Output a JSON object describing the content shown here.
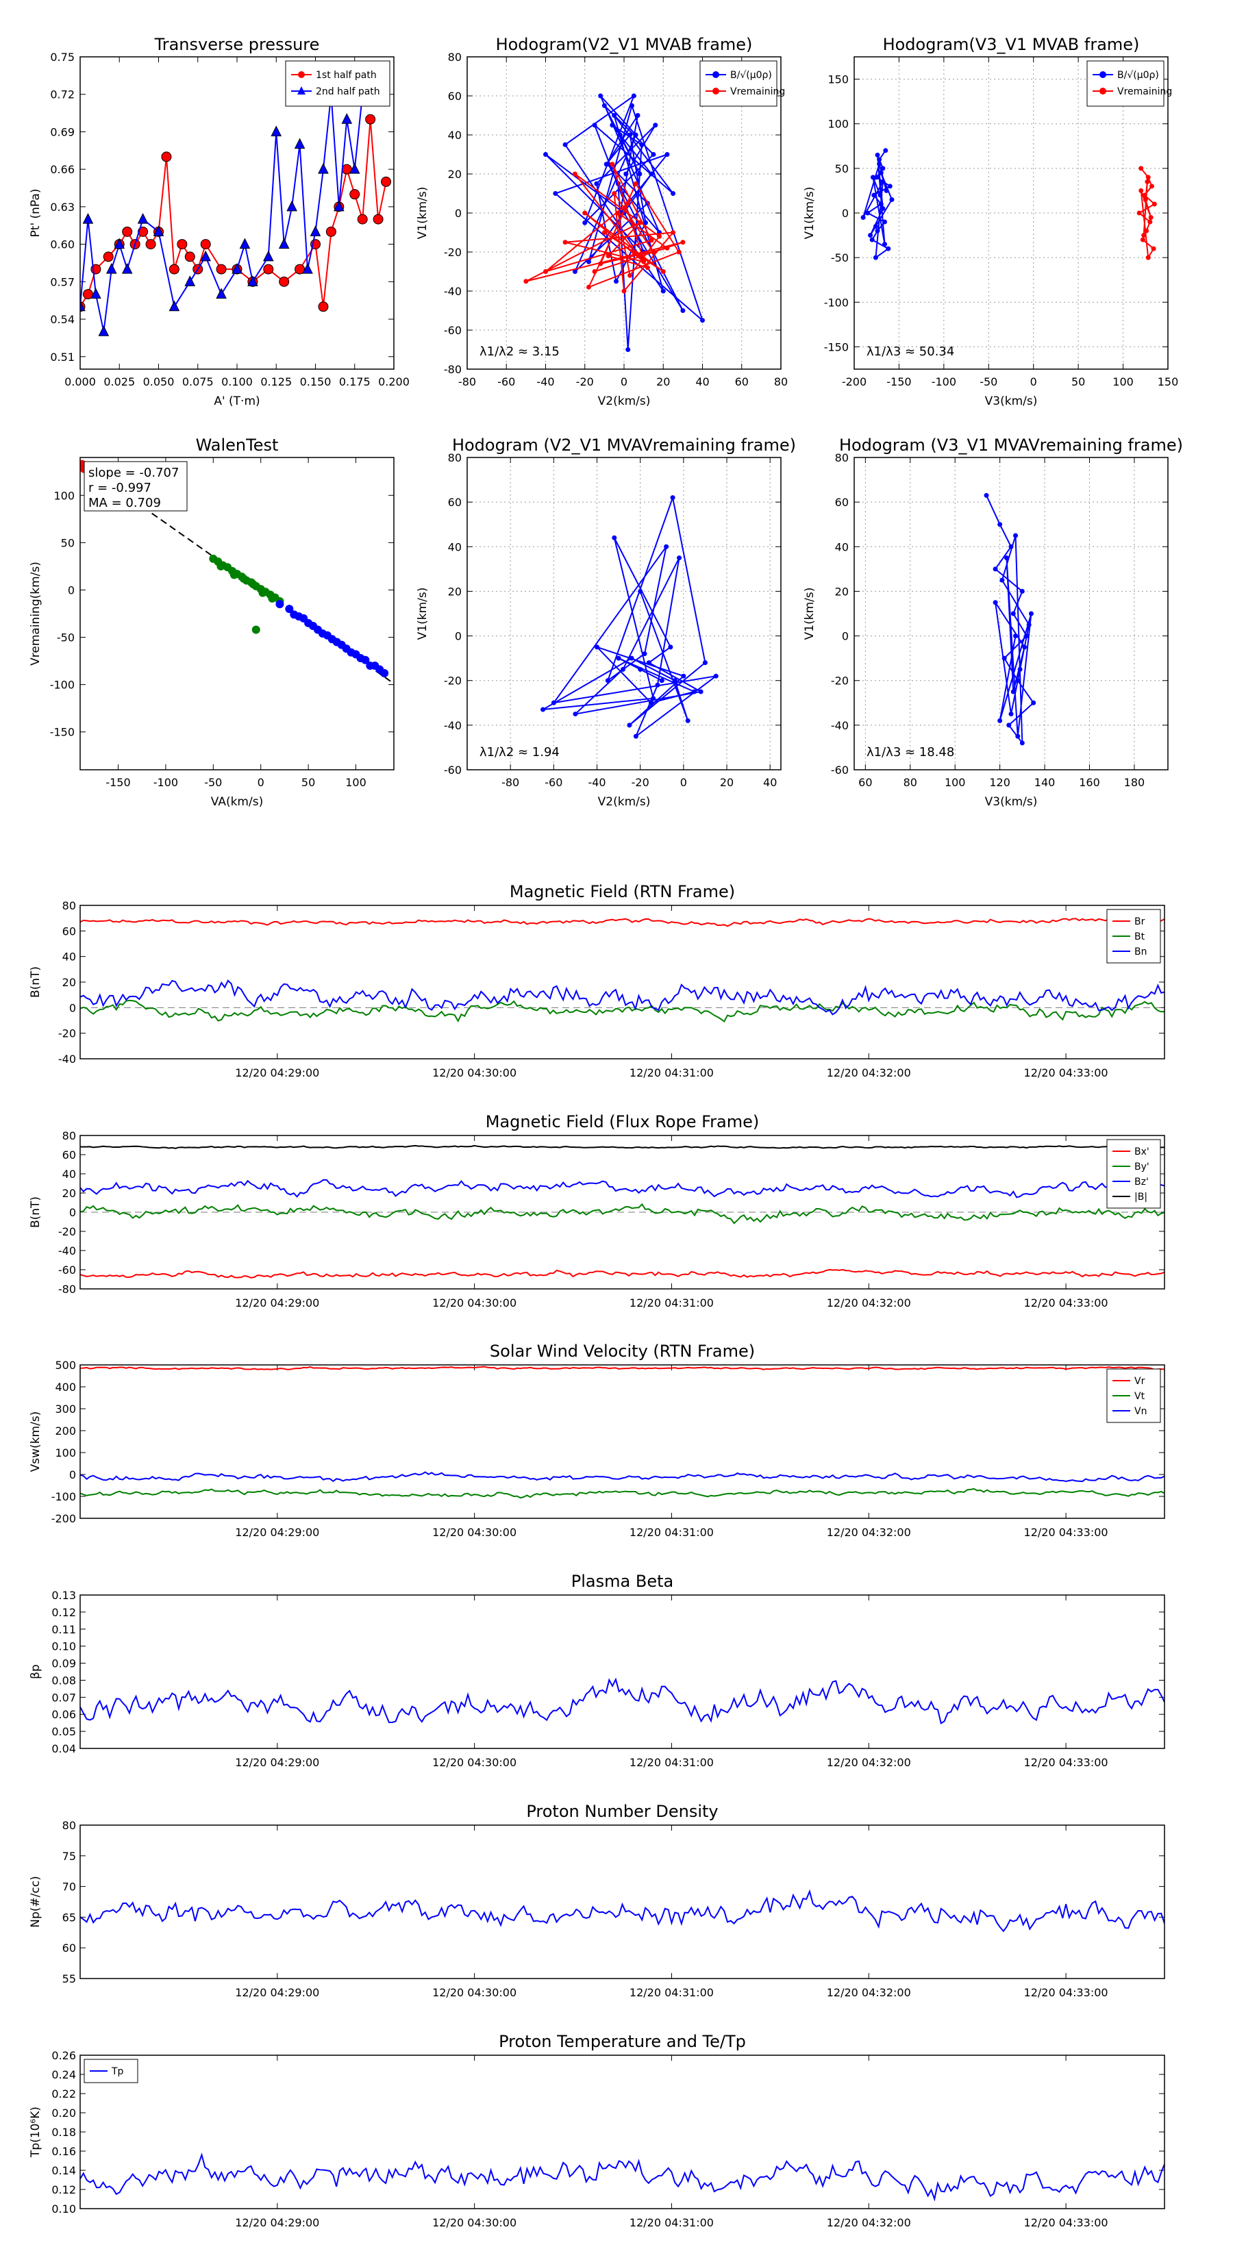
{
  "chart_data": [
    {
      "id": "tp",
      "type": "scatter",
      "title": "Transverse pressure",
      "xlabel": "A' (T·m)",
      "ylabel": "Pt' (nPa)",
      "xlim": [
        0.0,
        0.2
      ],
      "ylim": [
        0.5,
        0.75
      ],
      "xticks": [
        0.0,
        0.025,
        0.05,
        0.075,
        0.1,
        0.125,
        0.15,
        0.175,
        0.2
      ],
      "xtick_labels": [
        "0.000",
        "0.025",
        "0.050",
        "0.075",
        "0.100",
        "0.125",
        "0.150",
        "0.175",
        "0.200"
      ],
      "yticks": [
        0.51,
        0.54,
        0.57,
        0.6,
        0.63,
        0.66,
        0.69,
        0.72,
        0.75
      ],
      "ytick_labels": [
        "0.51",
        "0.54",
        "0.57",
        "0.60",
        "0.63",
        "0.66",
        "0.69",
        "0.72",
        "0.75"
      ],
      "grid": false,
      "legend": "top-right",
      "series": [
        {
          "name": "1st half path",
          "color": "#ff0000",
          "marker": "circle",
          "x": [
            0.0,
            0.005,
            0.01,
            0.018,
            0.025,
            0.03,
            0.035,
            0.04,
            0.045,
            0.05,
            0.055,
            0.06,
            0.065,
            0.07,
            0.075,
            0.08,
            0.09,
            0.1,
            0.11,
            0.12,
            0.13,
            0.14,
            0.15,
            0.155,
            0.16,
            0.165,
            0.17,
            0.175,
            0.18,
            0.185,
            0.19,
            0.195
          ],
          "y": [
            0.55,
            0.56,
            0.58,
            0.59,
            0.6,
            0.61,
            0.6,
            0.61,
            0.6,
            0.61,
            0.67,
            0.58,
            0.6,
            0.59,
            0.58,
            0.6,
            0.58,
            0.58,
            0.57,
            0.58,
            0.57,
            0.58,
            0.6,
            0.55,
            0.61,
            0.63,
            0.66,
            0.64,
            0.62,
            0.7,
            0.62,
            0.65
          ]
        },
        {
          "name": "2nd half path",
          "color": "#0000ff",
          "marker": "triangle",
          "x": [
            0.0,
            0.005,
            0.01,
            0.015,
            0.02,
            0.025,
            0.03,
            0.04,
            0.05,
            0.06,
            0.07,
            0.08,
            0.09,
            0.1,
            0.105,
            0.11,
            0.12,
            0.125,
            0.13,
            0.135,
            0.14,
            0.145,
            0.15,
            0.155,
            0.16,
            0.165,
            0.17,
            0.175,
            0.18
          ],
          "y": [
            0.55,
            0.62,
            0.56,
            0.53,
            0.58,
            0.6,
            0.58,
            0.62,
            0.61,
            0.55,
            0.57,
            0.59,
            0.56,
            0.58,
            0.6,
            0.57,
            0.59,
            0.69,
            0.6,
            0.63,
            0.68,
            0.58,
            0.61,
            0.66,
            0.72,
            0.63,
            0.7,
            0.66,
            0.72
          ]
        }
      ]
    },
    {
      "id": "h1",
      "type": "line",
      "title": "Hodogram(V2_V1 MVAB frame)",
      "xlabel": "V2(km/s)",
      "ylabel": "V1(km/s)",
      "xlim": [
        -80,
        80
      ],
      "ylim": [
        -80,
        80
      ],
      "xticks": [
        -80,
        -60,
        -40,
        -20,
        0,
        20,
        40,
        60,
        80
      ],
      "yticks": [
        -80,
        -60,
        -40,
        -20,
        0,
        20,
        40,
        60,
        80
      ],
      "grid": true,
      "legend": "top-right",
      "annotation": "λ1/λ2 ≈ 3.15",
      "series": [
        {
          "name": "B/√(μ0ρ)",
          "color": "#0000ff",
          "x": [
            -2,
            8,
            -10,
            15,
            -20,
            5,
            -30,
            20,
            -5,
            25,
            -15,
            10,
            -40,
            0,
            30,
            -8,
            12,
            -25,
            6,
            -12,
            18,
            -3,
            2,
            9,
            -6,
            14,
            -18,
            4,
            40,
            -35,
            22,
            -2,
            7,
            -9,
            3,
            11,
            -4,
            -14,
            16,
            1
          ],
          "y": [
            40,
            20,
            55,
            30,
            -5,
            60,
            35,
            -40,
            50,
            10,
            45,
            -20,
            30,
            0,
            -50,
            25,
            5,
            -30,
            40,
            60,
            -10,
            15,
            -70,
            35,
            45,
            20,
            -25,
            55,
            -55,
            10,
            30,
            0,
            50,
            25,
            40,
            -5,
            -35,
            15,
            45,
            20
          ]
        },
        {
          "name": "Vremaining",
          "color": "#ff0000",
          "x": [
            5,
            -10,
            20,
            -20,
            10,
            -30,
            25,
            0,
            -5,
            15,
            -15,
            30,
            -50,
            8,
            -8,
            12,
            -25,
            18,
            3,
            -3,
            22,
            -12,
            6,
            28,
            -18,
            2,
            -40,
            14,
            -6,
            10
          ],
          "y": [
            -20,
            -10,
            -30,
            0,
            -25,
            -15,
            -10,
            -40,
            10,
            -20,
            -30,
            -15,
            -35,
            -5,
            -22,
            -28,
            20,
            -12,
            -32,
            0,
            -18,
            -26,
            15,
            -20,
            -38,
            5,
            -30,
            -14,
            25,
            -24
          ]
        }
      ]
    },
    {
      "id": "h2",
      "type": "line",
      "title": "Hodogram(V3_V1 MVAB frame)",
      "xlabel": "V3(km/s)",
      "ylabel": "V1(km/s)",
      "xlim": [
        -200,
        150
      ],
      "ylim": [
        -175,
        175
      ],
      "xticks": [
        -200,
        -150,
        -100,
        -50,
        0,
        50,
        100,
        150
      ],
      "yticks": [
        -150,
        -100,
        -50,
        0,
        50,
        100,
        150
      ],
      "grid": true,
      "legend": "top-right",
      "annotation": "λ1/λ3 ≈ 50.34",
      "series": [
        {
          "name": "B/√(μ0ρ)",
          "color": "#0000ff",
          "x": [
            -165,
            -172,
            -168,
            -175,
            -160,
            -178,
            -170,
            -185,
            -166,
            -174,
            -180,
            -162,
            -176,
            -168,
            -190,
            -172,
            -164,
            -170,
            -158,
            -176,
            -182,
            -168,
            -174,
            -166,
            -179,
            -171
          ],
          "y": [
            70,
            60,
            50,
            40,
            30,
            20,
            10,
            0,
            -10,
            -20,
            -30,
            -40,
            -50,
            35,
            -5,
            55,
            25,
            45,
            15,
            -15,
            -25,
            5,
            65,
            -35,
            40,
            20
          ]
        },
        {
          "name": "Vremaining",
          "color": "#ff0000",
          "x": [
            120,
            128,
            132,
            124,
            135,
            118,
            130,
            126,
            122,
            134,
            128,
            120,
            131,
            125,
            127,
            123
          ],
          "y": [
            50,
            40,
            30,
            20,
            10,
            0,
            -10,
            -20,
            -30,
            -40,
            -50,
            25,
            -5,
            15,
            35,
            -25
          ]
        }
      ]
    },
    {
      "id": "walen",
      "type": "scatter",
      "title": "WalenTest",
      "xlabel": "VA(km/s)",
      "ylabel": "Vremaining(km/s)",
      "xlim": [
        -190,
        140
      ],
      "ylim": [
        -190,
        140
      ],
      "xticks": [
        -150,
        -100,
        -50,
        0,
        50,
        100
      ],
      "yticks": [
        -150,
        -100,
        -50,
        0,
        50,
        100
      ],
      "grid": false,
      "fit": {
        "slope": -0.707,
        "intercept": 0
      },
      "annotations": [
        "slope = -0.707",
        "r = -0.997",
        "MA = 0.709"
      ],
      "series": [
        {
          "name": "red",
          "color": "#ff0000",
          "x": [
            -188,
            -186
          ],
          "y": [
            133,
            128
          ]
        },
        {
          "name": "green",
          "color": "#008000",
          "x": [
            -50,
            -45,
            -40,
            -35,
            -30,
            -25,
            -20,
            -15,
            -10,
            -5,
            0,
            5,
            10,
            15,
            20,
            -42,
            -28,
            -18,
            -8,
            2,
            12,
            -5
          ],
          "y": [
            33,
            30,
            26,
            24,
            20,
            17,
            14,
            10,
            8,
            4,
            1,
            -2,
            -5,
            -8,
            -12,
            25,
            16,
            12,
            6,
            -3,
            -9,
            -42
          ]
        },
        {
          "name": "blue",
          "color": "#0000ff",
          "x": [
            20,
            30,
            40,
            50,
            60,
            70,
            80,
            90,
            100,
            110,
            120,
            130,
            35,
            55,
            75,
            95,
            115,
            45,
            65,
            85,
            105,
            125
          ],
          "y": [
            -15,
            -20,
            -28,
            -35,
            -42,
            -48,
            -55,
            -62,
            -68,
            -74,
            -80,
            -88,
            -26,
            -38,
            -52,
            -66,
            -80,
            -30,
            -46,
            -58,
            -72,
            -84
          ]
        }
      ]
    },
    {
      "id": "h3",
      "type": "line",
      "title": "Hodogram (V2_V1 MVAVremaining frame)",
      "xlabel": "V2(km/s)",
      "ylabel": "V1(km/s)",
      "xlim": [
        -100,
        45
      ],
      "ylim": [
        -60,
        80
      ],
      "xticks": [
        -80,
        -60,
        -40,
        -20,
        0,
        20,
        40
      ],
      "yticks": [
        -60,
        -40,
        -20,
        0,
        20,
        40,
        60,
        80
      ],
      "grid": true,
      "annotation": "λ1/λ2 ≈ 1.94",
      "series": [
        {
          "name": "Vremaining",
          "color": "#0000ff",
          "x": [
            -20,
            -10,
            -30,
            5,
            -15,
            -40,
            0,
            -25,
            10,
            -5,
            -35,
            -18,
            -8,
            -60,
            15,
            -22,
            -12,
            -2,
            -28,
            -50,
            8,
            -16,
            -6,
            -32,
            -14,
            -65,
            -24,
            -4,
            2,
            -20
          ],
          "y": [
            -15,
            -20,
            -10,
            -25,
            -30,
            -5,
            -18,
            -40,
            -12,
            62,
            -20,
            -8,
            40,
            -30,
            -18,
            -45,
            -22,
            35,
            -15,
            -35,
            -25,
            -12,
            -5,
            44,
            -28,
            -33,
            -10,
            -20,
            -38,
            20
          ]
        }
      ]
    },
    {
      "id": "h4",
      "type": "line",
      "title": "Hodogram (V3_V1 MVAVremaining frame)",
      "xlabel": "V3(km/s)",
      "ylabel": "V1(km/s)",
      "xlim": [
        55,
        195
      ],
      "ylim": [
        -60,
        80
      ],
      "xticks": [
        60,
        80,
        100,
        120,
        140,
        160,
        180
      ],
      "yticks": [
        -60,
        -40,
        -20,
        0,
        20,
        40,
        60,
        80
      ],
      "grid": true,
      "annotation": "λ1/λ3 ≈ 18.48",
      "series": [
        {
          "name": "Vremaining",
          "color": "#0000ff",
          "x": [
            114,
            120,
            125,
            118,
            130,
            126,
            132,
            122,
            128,
            135,
            124,
            130,
            127,
            121,
            133,
            129,
            125,
            118,
            131,
            126,
            123,
            128,
            134,
            120,
            127
          ],
          "y": [
            63,
            50,
            40,
            30,
            20,
            10,
            0,
            -10,
            -20,
            -30,
            -40,
            -48,
            45,
            25,
            5,
            -15,
            -35,
            15,
            -5,
            -25,
            35,
            -45,
            10,
            -38,
            0
          ]
        }
      ]
    }
  ],
  "time_axis": {
    "tick_labels": [
      "12/20 04:29:00",
      "12/20 04:30:00",
      "12/20 04:31:00",
      "12/20 04:32:00",
      "12/20 04:33:00"
    ],
    "tick_positions_min": [
      1,
      2,
      3,
      4,
      5
    ],
    "range_min": [
      0,
      5.5
    ]
  },
  "timeseries": [
    {
      "id": "brtn",
      "title": "Magnetic Field (RTN Frame)",
      "ylabel": "B(nT)",
      "ylim": [
        -40,
        80
      ],
      "yticks": [
        -40,
        -20,
        0,
        20,
        40,
        60,
        80
      ],
      "zero_line": true,
      "legend": "top-right",
      "series": [
        {
          "name": "Br",
          "color": "#ff0000",
          "base": 67,
          "noise": 2
        },
        {
          "name": "Bt",
          "color": "#008000",
          "base": -2,
          "noise": 5
        },
        {
          "name": "Bn",
          "color": "#0000ff",
          "base": 8,
          "noise": 9
        }
      ]
    },
    {
      "id": "bfr",
      "title": "Magnetic Field (Flux Rope Frame)",
      "ylabel": "B(nT)",
      "ylim": [
        -80,
        80
      ],
      "yticks": [
        -80,
        -60,
        -40,
        -20,
        0,
        20,
        40,
        60,
        80
      ],
      "zero_line": true,
      "legend": "top-right",
      "series": [
        {
          "name": "Bx'",
          "color": "#ff0000",
          "base": -65,
          "noise": 3
        },
        {
          "name": "By'",
          "color": "#008000",
          "base": 0,
          "noise": 6
        },
        {
          "name": "Bz'",
          "color": "#0000ff",
          "base": 25,
          "noise": 6
        },
        {
          "name": "|B|",
          "color": "#000000",
          "base": 68,
          "noise": 1
        }
      ]
    },
    {
      "id": "vsw",
      "title": "Solar Wind Velocity (RTN Frame)",
      "ylabel": "Vsw(km/s)",
      "ylim": [
        -200,
        500
      ],
      "yticks": [
        -200,
        -100,
        0,
        100,
        200,
        300,
        400,
        500
      ],
      "zero_line": false,
      "legend": "top-right",
      "series": [
        {
          "name": "Vr",
          "color": "#ff0000",
          "base": 485,
          "noise": 5
        },
        {
          "name": "Vt",
          "color": "#008000",
          "base": -85,
          "noise": 12
        },
        {
          "name": "Vn",
          "color": "#0000ff",
          "base": -10,
          "noise": 14
        }
      ]
    },
    {
      "id": "beta",
      "title": "Plasma Beta",
      "ylabel": "βp",
      "ylim": [
        0.04,
        0.13
      ],
      "yticks": [
        0.04,
        0.05,
        0.06,
        0.07,
        0.08,
        0.09,
        0.1,
        0.11,
        0.12,
        0.13
      ],
      "ytick_labels": [
        "0.04",
        "0.05",
        "0.06",
        "0.07",
        "0.08",
        "0.09",
        "0.10",
        "0.11",
        "0.12",
        "0.13"
      ],
      "zero_line": false,
      "legend": "none",
      "series": [
        {
          "name": "beta",
          "color": "#0000ff",
          "base": 0.066,
          "noise": 0.009
        }
      ]
    },
    {
      "id": "np",
      "title": "Proton Number Density",
      "ylabel": "Np(#/cc)",
      "ylim": [
        55,
        80
      ],
      "yticks": [
        55,
        60,
        65,
        70,
        75,
        80
      ],
      "zero_line": false,
      "legend": "none",
      "series": [
        {
          "name": "Np",
          "color": "#0000ff",
          "base": 65.5,
          "noise": 2.2
        }
      ]
    },
    {
      "id": "tp2",
      "title": "Proton Temperature and Te/Tp",
      "ylabel": "Tp(10⁶K)",
      "ylim": [
        0.1,
        0.26
      ],
      "yticks": [
        0.1,
        0.12,
        0.14,
        0.16,
        0.18,
        0.2,
        0.22,
        0.24,
        0.26
      ],
      "ytick_labels": [
        "0.10",
        "0.12",
        "0.14",
        "0.16",
        "0.18",
        "0.20",
        "0.22",
        "0.24",
        "0.26"
      ],
      "zero_line": false,
      "legend": "top-left",
      "series": [
        {
          "name": "Tp",
          "color": "#0000ff",
          "base": 0.135,
          "noise": 0.015
        }
      ]
    }
  ]
}
